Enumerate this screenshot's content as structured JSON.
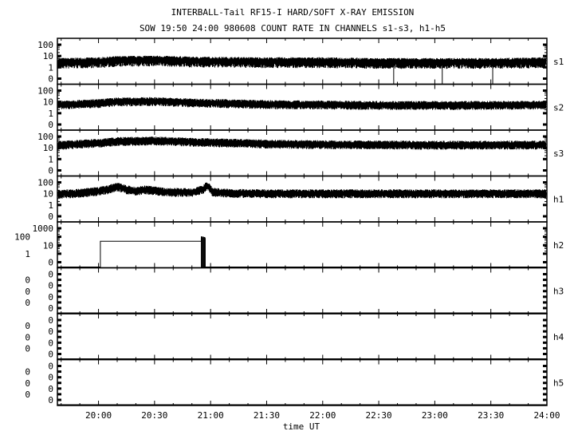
{
  "chart_data": {
    "type": "line",
    "title": "INTERBALL-Tail RF15-I HARD/SOFT X-RAY EMISSION",
    "subtitle": "SOW 19:50 24:00 980608  COUNT RATE IN CHANNELS s1-s3, h1-h5",
    "xlabel": "time UT",
    "xlim": [
      "19:38",
      "24:00"
    ],
    "x_ticks": [
      "20:00",
      "20:30",
      "21:00",
      "21:30",
      "22:00",
      "22:30",
      "23:00",
      "23:30",
      "24:00"
    ],
    "y_scale": "log (0 at bottom)",
    "grid": false,
    "panels": [
      {
        "name": "s1",
        "y_ticks": [
          "100",
          "10",
          "1",
          "0"
        ],
        "times": [
          "19:38",
          "20:00",
          "20:10",
          "20:30",
          "20:50",
          "21:30",
          "22:00",
          "22:30",
          "23:00",
          "23:30",
          "24:00"
        ],
        "values": [
          3,
          3.5,
          4.5,
          5,
          4,
          3.5,
          3.5,
          3,
          3,
          3,
          3.5
        ],
        "dropouts_to_zero": [
          "22:38",
          "23:04",
          "23:31"
        ]
      },
      {
        "name": "s2",
        "y_ticks": [
          "100",
          "10",
          "1",
          "0"
        ],
        "times": [
          "19:38",
          "20:00",
          "20:10",
          "20:30",
          "20:50",
          "21:30",
          "22:00",
          "22:30",
          "23:00",
          "23:30",
          "24:00"
        ],
        "values": [
          6,
          8,
          11,
          12,
          9,
          6.5,
          6,
          5.5,
          5.5,
          5.5,
          6
        ]
      },
      {
        "name": "s3",
        "y_ticks": [
          "100",
          "10",
          "1",
          "0"
        ],
        "times": [
          "19:38",
          "20:00",
          "20:10",
          "20:30",
          "20:50",
          "21:30",
          "22:00",
          "22:30",
          "23:00",
          "23:30",
          "24:00"
        ],
        "values": [
          18,
          28,
          40,
          45,
          35,
          24,
          21,
          20,
          19,
          19,
          20
        ]
      },
      {
        "name": "h1",
        "y_ticks": [
          "100",
          "10",
          "1",
          "0"
        ],
        "times": [
          "19:38",
          "19:50",
          "20:00",
          "20:05",
          "20:10",
          "20:15",
          "20:20",
          "20:25",
          "20:35",
          "20:50",
          "20:56",
          "20:58",
          "21:01",
          "21:10",
          "21:30",
          "22:00",
          "23:00",
          "24:00"
        ],
        "values": [
          10,
          12,
          18,
          25,
          45,
          25,
          18,
          25,
          15,
          14,
          25,
          55,
          15,
          12,
          11,
          11,
          11,
          11
        ]
      },
      {
        "name": "h2",
        "y_ticks": [
          "1000",
          "100",
          "10",
          "1",
          "0"
        ],
        "times": [
          "19:38",
          "20:01",
          "20:01",
          "20:55",
          "20:55",
          "20:57",
          "20:57",
          "24:00"
        ],
        "values": [
          0,
          0,
          30,
          30,
          100,
          80,
          0,
          0
        ]
      },
      {
        "name": "h3",
        "y_ticks": [
          "0",
          "0",
          "0",
          "0",
          "0",
          "0",
          "0"
        ],
        "times": [
          "19:38",
          "24:00"
        ],
        "values": [
          0,
          0
        ]
      },
      {
        "name": "h4",
        "y_ticks": [
          "0",
          "0",
          "0",
          "0",
          "0",
          "0",
          "0"
        ],
        "times": [
          "19:38",
          "24:00"
        ],
        "values": [
          0,
          0
        ]
      },
      {
        "name": "h5",
        "y_ticks": [
          "0",
          "0",
          "0",
          "0",
          "0",
          "0",
          "0"
        ],
        "times": [
          "19:38",
          "24:00"
        ],
        "values": [
          0,
          0
        ]
      }
    ]
  }
}
